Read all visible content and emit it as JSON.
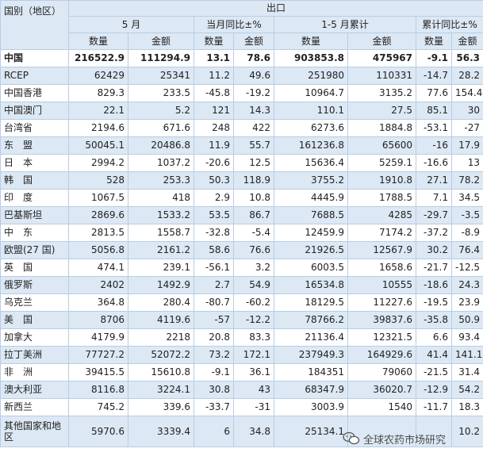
{
  "header": {
    "country": "国别（地区）",
    "export": "出口",
    "groups": [
      "5 月",
      "当月同比±%",
      "1-5 月累计",
      "累计同比±%"
    ],
    "sub": [
      "数量",
      "金额",
      "数量",
      "金额",
      "数量",
      "金额",
      "数量",
      "金额"
    ]
  },
  "rows": [
    {
      "name": "中国",
      "cells": [
        "216522.9",
        "111294.9",
        "13.1",
        "78.6",
        "903853.8",
        "475967",
        "-9.1",
        "56.3"
      ]
    },
    {
      "name": "RCEP",
      "cells": [
        "62429",
        "25341",
        "11.2",
        "49.6",
        "251980",
        "110331",
        "-14.7",
        "28.2"
      ]
    },
    {
      "name": "中国香港",
      "cells": [
        "829.3",
        "233.5",
        "-45.8",
        "-19.2",
        "10964.7",
        "3135.2",
        "77.6",
        "154.4"
      ]
    },
    {
      "name": "中国澳门",
      "cells": [
        "22.1",
        "5.2",
        "121",
        "14.3",
        "110.1",
        "27.5",
        "85.1",
        "30"
      ]
    },
    {
      "name": "台湾省",
      "cells": [
        "2194.6",
        "671.6",
        "248",
        "422",
        "6273.6",
        "1884.8",
        "-53.1",
        "-27"
      ]
    },
    {
      "name": "东　盟",
      "cells": [
        "50045.1",
        "20486.8",
        "11.9",
        "55.7",
        "161236.8",
        "65600",
        "-16",
        "17.9"
      ]
    },
    {
      "name": "日　本",
      "cells": [
        "2994.2",
        "1037.2",
        "-20.6",
        "12.5",
        "15636.4",
        "5259.1",
        "-16.6",
        "13"
      ]
    },
    {
      "name": "韩　国",
      "cells": [
        "528",
        "253.3",
        "50.3",
        "118.9",
        "3755.2",
        "1910.8",
        "27.1",
        "78.2"
      ]
    },
    {
      "name": "印　度",
      "cells": [
        "1067.5",
        "418",
        "2.9",
        "10.8",
        "4445.9",
        "1788.5",
        "7.1",
        "34.5"
      ]
    },
    {
      "name": "巴基斯坦",
      "cells": [
        "2869.6",
        "1533.2",
        "53.5",
        "86.7",
        "7688.5",
        "4285",
        "-29.7",
        "-3.5"
      ]
    },
    {
      "name": "中　东",
      "cells": [
        "2813.5",
        "1558.7",
        "-32.8",
        "-5.4",
        "12459.9",
        "7174.2",
        "-37.2",
        "-8.9"
      ]
    },
    {
      "name": "欧盟(27 国)",
      "cells": [
        "5056.8",
        "2161.2",
        "58.6",
        "76.6",
        "21926.5",
        "12567.9",
        "30.2",
        "76.4"
      ]
    },
    {
      "name": "英　国",
      "cells": [
        "474.1",
        "239.1",
        "-56.1",
        "3.2",
        "6003.5",
        "1658.6",
        "-21.7",
        "-12.5"
      ]
    },
    {
      "name": "俄罗斯",
      "cells": [
        "2402",
        "1492.9",
        "2.7",
        "54.9",
        "16534.8",
        "10555",
        "-18.6",
        "24.3"
      ]
    },
    {
      "name": "乌克兰",
      "cells": [
        "364.8",
        "280.4",
        "-80.7",
        "-60.2",
        "18129.5",
        "11227.6",
        "-19.5",
        "23.9"
      ]
    },
    {
      "name": "美　国",
      "cells": [
        "8706",
        "4119.6",
        "-57",
        "-12.2",
        "78766.2",
        "39837.6",
        "-35.8",
        "50.9"
      ]
    },
    {
      "name": "加拿大",
      "cells": [
        "4179.9",
        "2218",
        "20.8",
        "83.3",
        "21136.4",
        "12321.5",
        "6.6",
        "93.4"
      ]
    },
    {
      "name": "拉丁美洲",
      "cells": [
        "77727.2",
        "52072.2",
        "73.2",
        "172.1",
        "237949.3",
        "164929.6",
        "41.4",
        "141.1"
      ]
    },
    {
      "name": "非　洲",
      "cells": [
        "39415.5",
        "15610.8",
        "-9.1",
        "36.1",
        "184351",
        "79060",
        "-21.5",
        "31.4"
      ]
    },
    {
      "name": "澳大利亚",
      "cells": [
        "8116.8",
        "3224.1",
        "30.8",
        "43",
        "68347.9",
        "36020.7",
        "-12.9",
        "54.2"
      ]
    },
    {
      "name": "新西兰",
      "cells": [
        "745.2",
        "339.6",
        "-33.7",
        "-31",
        "3003.9",
        "1540",
        "-11.7",
        "18.3"
      ]
    },
    {
      "name": "其他国家和地区",
      "cells": [
        "5970.6",
        "3339.4",
        "6",
        "34.8",
        "25134.1",
        "",
        "",
        "10.2"
      ]
    }
  ],
  "watermark": {
    "text": "全球农药市场研究"
  }
}
